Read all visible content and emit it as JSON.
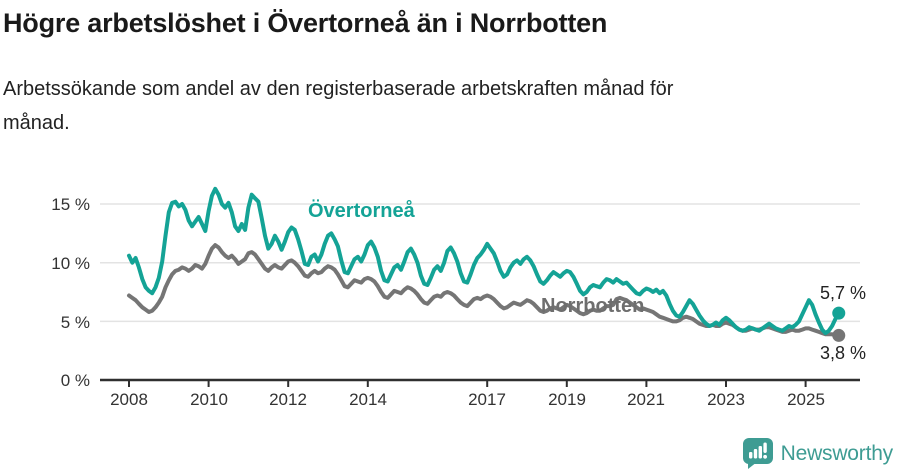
{
  "header": {
    "title": "Högre arbetslöshet i Övertorneå än i Norrbotten",
    "subtitle_line1": "Arbetssökande som andel av den registerbaserade arbetskraften månad för",
    "subtitle_line2": "månad."
  },
  "footer": {
    "brand": "Newsworthy",
    "brand_color": "#3e9c93"
  },
  "chart_data": {
    "type": "line",
    "title": "Högre arbetslöshet i Övertorneå än i Norrbotten",
    "ylabel": "Arbetssökande som andel av den registerbaserade arbetskraften",
    "unit": "%",
    "frequency": "monthly",
    "x_start": "2008-01",
    "x_end": "2025-11",
    "ylim": [
      0,
      17
    ],
    "grid": "horizontal",
    "x_ticks": [
      2008,
      2010,
      2012,
      2014,
      2017,
      2019,
      2021,
      2023,
      2025
    ],
    "x_tick_labels": [
      "2008",
      "2010",
      "2012",
      "2014",
      "2017",
      "2019",
      "2021",
      "2023",
      "2025"
    ],
    "y_ticks": [
      0,
      5,
      10,
      15
    ],
    "y_tick_labels": [
      "0 %",
      "5 %",
      "10 %",
      "15 %"
    ],
    "axis_color": "#2f2f2f",
    "gridline_color": "#e3e3e3",
    "series": [
      {
        "name": "Övertorneå",
        "color": "#14a396",
        "label_color": "#14a396",
        "end_label": "5,7 %",
        "end_value": 5.7,
        "values": [
          10.6,
          10.0,
          10.4,
          9.6,
          8.6,
          7.9,
          7.6,
          7.4,
          7.9,
          8.7,
          10.1,
          12.3,
          14.3,
          15.1,
          15.2,
          14.8,
          15.0,
          14.5,
          13.6,
          13.1,
          13.5,
          13.9,
          13.3,
          12.7,
          14.4,
          15.7,
          16.3,
          15.8,
          15.0,
          14.7,
          15.1,
          14.3,
          13.1,
          12.7,
          13.3,
          12.8,
          14.7,
          15.8,
          15.5,
          15.2,
          13.8,
          12.3,
          11.2,
          11.6,
          12.3,
          11.8,
          11.1,
          11.8,
          12.6,
          13.0,
          12.8,
          12.0,
          11.0,
          9.9,
          9.8,
          10.5,
          10.7,
          10.1,
          10.7,
          11.6,
          12.3,
          12.5,
          12.0,
          11.4,
          10.2,
          9.2,
          9.1,
          9.7,
          10.3,
          10.5,
          10.1,
          10.7,
          11.5,
          11.8,
          11.3,
          10.5,
          9.3,
          8.5,
          8.4,
          9.0,
          9.6,
          9.8,
          9.4,
          10.1,
          10.9,
          11.2,
          10.7,
          10.0,
          8.9,
          8.2,
          8.1,
          8.7,
          9.4,
          9.7,
          9.3,
          10.0,
          11.0,
          11.3,
          10.8,
          10.1,
          9.1,
          8.4,
          8.3,
          9.0,
          9.8,
          10.4,
          10.7,
          11.1,
          11.6,
          11.2,
          10.8,
          10.1,
          9.3,
          8.8,
          9.0,
          9.6,
          10.0,
          10.2,
          9.9,
          10.3,
          10.5,
          10.2,
          9.7,
          9.0,
          8.4,
          8.2,
          8.5,
          8.9,
          9.2,
          9.0,
          8.8,
          9.1,
          9.3,
          9.2,
          8.8,
          8.2,
          7.6,
          7.3,
          7.5,
          7.9,
          8.1,
          8.0,
          7.9,
          8.3,
          8.6,
          8.5,
          8.3,
          8.6,
          8.4,
          8.2,
          8.3,
          8.0,
          7.7,
          7.4,
          7.3,
          7.6,
          7.8,
          7.7,
          7.5,
          7.7,
          7.4,
          7.6,
          7.2,
          6.5,
          5.9,
          5.5,
          5.4,
          5.8,
          6.3,
          6.8,
          6.5,
          6.0,
          5.5,
          5.1,
          4.8,
          4.6,
          4.7,
          4.9,
          4.7,
          5.1,
          5.3,
          5.1,
          4.8,
          4.5,
          4.3,
          4.2,
          4.3,
          4.5,
          4.4,
          4.3,
          4.2,
          4.4,
          4.6,
          4.8,
          4.6,
          4.4,
          4.3,
          4.2,
          4.4,
          4.6,
          4.5,
          4.7,
          5.0,
          5.6,
          6.2,
          6.8,
          6.4,
          5.6,
          4.9,
          4.3,
          4.0,
          4.2,
          4.6,
          5.2,
          5.7
        ]
      },
      {
        "name": "Norrbotten",
        "color": "#757575",
        "label_color": "#6e6e6e",
        "end_label": "3,8 %",
        "end_value": 3.8,
        "values": [
          7.2,
          7.0,
          6.8,
          6.5,
          6.2,
          6.0,
          5.8,
          5.9,
          6.2,
          6.6,
          7.1,
          7.9,
          8.5,
          9.0,
          9.3,
          9.4,
          9.6,
          9.5,
          9.3,
          9.5,
          9.8,
          9.7,
          9.5,
          9.9,
          10.6,
          11.2,
          11.5,
          11.3,
          10.9,
          10.6,
          10.4,
          10.6,
          10.3,
          9.9,
          10.1,
          10.3,
          10.8,
          10.9,
          10.7,
          10.3,
          9.9,
          9.5,
          9.3,
          9.6,
          9.8,
          9.6,
          9.5,
          9.8,
          10.1,
          10.2,
          10.0,
          9.7,
          9.3,
          8.9,
          8.8,
          9.1,
          9.3,
          9.1,
          9.2,
          9.5,
          9.7,
          9.6,
          9.4,
          9.0,
          8.5,
          8.0,
          7.9,
          8.2,
          8.5,
          8.4,
          8.3,
          8.6,
          8.7,
          8.6,
          8.4,
          8.0,
          7.5,
          7.1,
          7.0,
          7.3,
          7.6,
          7.5,
          7.4,
          7.7,
          7.9,
          7.8,
          7.6,
          7.3,
          6.9,
          6.6,
          6.5,
          6.8,
          7.1,
          7.2,
          7.1,
          7.4,
          7.5,
          7.4,
          7.2,
          6.9,
          6.6,
          6.4,
          6.3,
          6.6,
          6.9,
          7.0,
          6.9,
          7.1,
          7.2,
          7.1,
          6.9,
          6.6,
          6.3,
          6.1,
          6.2,
          6.4,
          6.6,
          6.5,
          6.4,
          6.6,
          6.8,
          6.7,
          6.5,
          6.2,
          5.9,
          5.8,
          5.9,
          6.1,
          6.2,
          6.1,
          6.0,
          6.2,
          6.4,
          6.3,
          6.1,
          5.9,
          5.7,
          5.6,
          5.7,
          5.9,
          6.0,
          5.9,
          5.9,
          6.1,
          6.3,
          6.3,
          6.4,
          6.9,
          7.0,
          6.9,
          6.8,
          6.6,
          6.4,
          6.2,
          6.0,
          6.1,
          6.0,
          5.9,
          5.8,
          5.6,
          5.4,
          5.3,
          5.2,
          5.1,
          5.0,
          5.0,
          5.1,
          5.3,
          5.4,
          5.3,
          5.2,
          5.0,
          4.8,
          4.7,
          4.6,
          4.6,
          4.7,
          4.6,
          4.6,
          4.8,
          4.9,
          4.8,
          4.7,
          4.5,
          4.3,
          4.2,
          4.2,
          4.3,
          4.4,
          4.3,
          4.3,
          4.4,
          4.5,
          4.5,
          4.4,
          4.3,
          4.2,
          4.1,
          4.1,
          4.2,
          4.3,
          4.2,
          4.2,
          4.3,
          4.4,
          4.4,
          4.3,
          4.2,
          4.1,
          4.0,
          3.9,
          3.9,
          3.9,
          3.8,
          3.8
        ]
      }
    ]
  }
}
